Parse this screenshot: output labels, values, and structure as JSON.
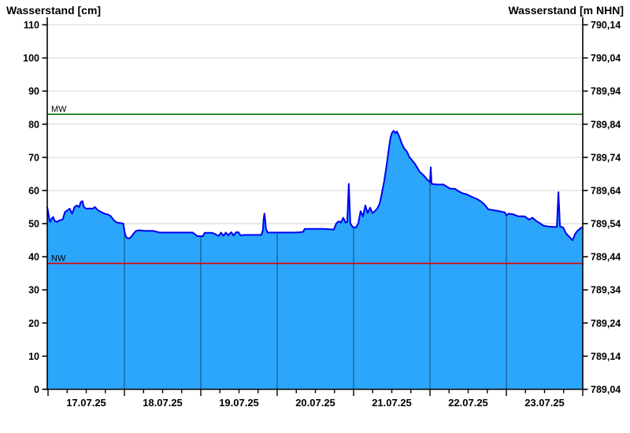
{
  "colors": {
    "fill": "#2ba6fb",
    "line": "#0000f0",
    "mw_line": "#007000",
    "nw_line": "#e00000",
    "grid": "#dfdfdf",
    "axis": "#000000",
    "day_line": "rgba(0,0,0,0.45)"
  },
  "chart_data": {
    "type": "area",
    "left_axis": {
      "title": "Wasserstand [cm]",
      "min": 0,
      "max": 110,
      "tick_step": 10,
      "tick_labels": [
        "110",
        "100",
        "90",
        "80",
        "70",
        "60",
        "50",
        "40",
        "30",
        "20",
        "10",
        "0"
      ]
    },
    "right_axis": {
      "title": "Wasserstand [m NHN]",
      "tick_labels": [
        "790,14",
        "790,04",
        "789,94",
        "789,84",
        "789,74",
        "789,64",
        "789,54",
        "789,44",
        "789,34",
        "789,24",
        "789,14",
        "789,04"
      ]
    },
    "x_axis": {
      "tick_labels": [
        "17.07.25",
        "18.07.25",
        "19.07.25",
        "20.07.25",
        "21.07.25",
        "22.07.25",
        "23.07.25"
      ],
      "days_shown": 7,
      "minor_ticks_per_day": 4
    },
    "reference_lines": [
      {
        "label": "MW",
        "value_cm": 83
      },
      {
        "label": "NW",
        "value_cm": 38
      }
    ],
    "series": [
      {
        "name": "Wasserstand",
        "unit": "cm",
        "points_day_cm": [
          [
            -0.01,
            55
          ],
          [
            0.005,
            53
          ],
          [
            0.015,
            51.5
          ],
          [
            0.026,
            50.5
          ],
          [
            0.046,
            51.5
          ],
          [
            0.067,
            52
          ],
          [
            0.088,
            50.8
          ],
          [
            0.119,
            50.5
          ],
          [
            0.15,
            51
          ],
          [
            0.191,
            51.2
          ],
          [
            0.222,
            53.5
          ],
          [
            0.253,
            54
          ],
          [
            0.284,
            54.5
          ],
          [
            0.315,
            53
          ],
          [
            0.346,
            55
          ],
          [
            0.377,
            55.5
          ],
          [
            0.408,
            55
          ],
          [
            0.428,
            56.5
          ],
          [
            0.449,
            56.8
          ],
          [
            0.47,
            55
          ],
          [
            0.5,
            54.5
          ],
          [
            0.542,
            54.6
          ],
          [
            0.583,
            54.5
          ],
          [
            0.614,
            55
          ],
          [
            0.655,
            54
          ],
          [
            0.697,
            53.5
          ],
          [
            0.738,
            53
          ],
          [
            0.779,
            52.8
          ],
          [
            0.82,
            52.3
          ],
          [
            0.862,
            51
          ],
          [
            0.903,
            50.3
          ],
          [
            0.944,
            50.2
          ],
          [
            0.986,
            50
          ],
          [
            1.006,
            47
          ],
          [
            1.027,
            45.8
          ],
          [
            1.058,
            45.5
          ],
          [
            1.089,
            46
          ],
          [
            1.12,
            47
          ],
          [
            1.151,
            47.8
          ],
          [
            1.192,
            48
          ],
          [
            1.274,
            47.8
          ],
          [
            1.378,
            47.8
          ],
          [
            1.46,
            47.3
          ],
          [
            1.584,
            47.3
          ],
          [
            1.739,
            47.3
          ],
          [
            1.894,
            47.3
          ],
          [
            1.956,
            46.2
          ],
          [
            2.028,
            46.2
          ],
          [
            2.049,
            47.2
          ],
          [
            2.152,
            47.2
          ],
          [
            2.234,
            46.3
          ],
          [
            2.265,
            47.3
          ],
          [
            2.296,
            46.3
          ],
          [
            2.327,
            47.3
          ],
          [
            2.358,
            46.5
          ],
          [
            2.399,
            47.4
          ],
          [
            2.43,
            46.4
          ],
          [
            2.461,
            47.4
          ],
          [
            2.492,
            47.4
          ],
          [
            2.523,
            46.4
          ],
          [
            2.565,
            46.6
          ],
          [
            2.668,
            46.6
          ],
          [
            2.792,
            46.6
          ],
          [
            2.812,
            48
          ],
          [
            2.823,
            51.5
          ],
          [
            2.833,
            53
          ],
          [
            2.843,
            51
          ],
          [
            2.853,
            48.5
          ],
          [
            2.874,
            47.3
          ],
          [
            2.977,
            47.3
          ],
          [
            3.101,
            47.3
          ],
          [
            3.235,
            47.3
          ],
          [
            3.338,
            47.5
          ],
          [
            3.359,
            48.4
          ],
          [
            3.493,
            48.4
          ],
          [
            3.617,
            48.4
          ],
          [
            3.741,
            48.2
          ],
          [
            3.772,
            50
          ],
          [
            3.803,
            50.7
          ],
          [
            3.834,
            50.3
          ],
          [
            3.865,
            51.8
          ],
          [
            3.896,
            50.3
          ],
          [
            3.917,
            50.5
          ],
          [
            3.937,
            62
          ],
          [
            3.958,
            50
          ],
          [
            3.989,
            49
          ],
          [
            4.03,
            48.8
          ],
          [
            4.061,
            50
          ],
          [
            4.092,
            53.8
          ],
          [
            4.123,
            52.2
          ],
          [
            4.154,
            55.5
          ],
          [
            4.185,
            53.2
          ],
          [
            4.216,
            54.8
          ],
          [
            4.247,
            53.2
          ],
          [
            4.278,
            53.8
          ],
          [
            4.309,
            54.5
          ],
          [
            4.34,
            56
          ],
          [
            4.36,
            58
          ],
          [
            4.381,
            60.5
          ],
          [
            4.402,
            63
          ],
          [
            4.422,
            66
          ],
          [
            4.443,
            69.5
          ],
          [
            4.464,
            73
          ],
          [
            4.484,
            76
          ],
          [
            4.505,
            77.5
          ],
          [
            4.525,
            78
          ],
          [
            4.546,
            77.3
          ],
          [
            4.567,
            77.8
          ],
          [
            4.598,
            76.3
          ],
          [
            4.629,
            74.3
          ],
          [
            4.66,
            72.8
          ],
          [
            4.701,
            71.6
          ],
          [
            4.732,
            70
          ],
          [
            4.763,
            69.2
          ],
          [
            4.804,
            68
          ],
          [
            4.835,
            66.8
          ],
          [
            4.866,
            65.6
          ],
          [
            4.907,
            64.8
          ],
          [
            4.938,
            64
          ],
          [
            4.969,
            63.2
          ],
          [
            5.0,
            62.5
          ],
          [
            5.01,
            67
          ],
          [
            5.021,
            62
          ],
          [
            5.093,
            61.8
          ],
          [
            5.175,
            61.8
          ],
          [
            5.217,
            61.2
          ],
          [
            5.268,
            60.5
          ],
          [
            5.33,
            60.5
          ],
          [
            5.371,
            59.8
          ],
          [
            5.423,
            59.2
          ],
          [
            5.485,
            58.8
          ],
          [
            5.557,
            58
          ],
          [
            5.609,
            57.5
          ],
          [
            5.66,
            56.8
          ],
          [
            5.712,
            55.8
          ],
          [
            5.764,
            54.3
          ],
          [
            5.846,
            54
          ],
          [
            5.918,
            53.7
          ],
          [
            5.98,
            53.4
          ],
          [
            6.0,
            52.5
          ],
          [
            6.031,
            53
          ],
          [
            6.093,
            52.8
          ],
          [
            6.155,
            52.2
          ],
          [
            6.238,
            52.2
          ],
          [
            6.3,
            51.2
          ],
          [
            6.341,
            51.8
          ],
          [
            6.392,
            50.8
          ],
          [
            6.434,
            50.2
          ],
          [
            6.485,
            49.4
          ],
          [
            6.557,
            49.1
          ],
          [
            6.619,
            49
          ],
          [
            6.661,
            49
          ],
          [
            6.681,
            59.5
          ],
          [
            6.702,
            49.2
          ],
          [
            6.743,
            48.8
          ],
          [
            6.784,
            47
          ],
          [
            6.825,
            46
          ],
          [
            6.867,
            45
          ],
          [
            6.898,
            46.8
          ],
          [
            6.929,
            47.8
          ],
          [
            6.97,
            48.6
          ],
          [
            7.0,
            49
          ]
        ]
      }
    ]
  }
}
